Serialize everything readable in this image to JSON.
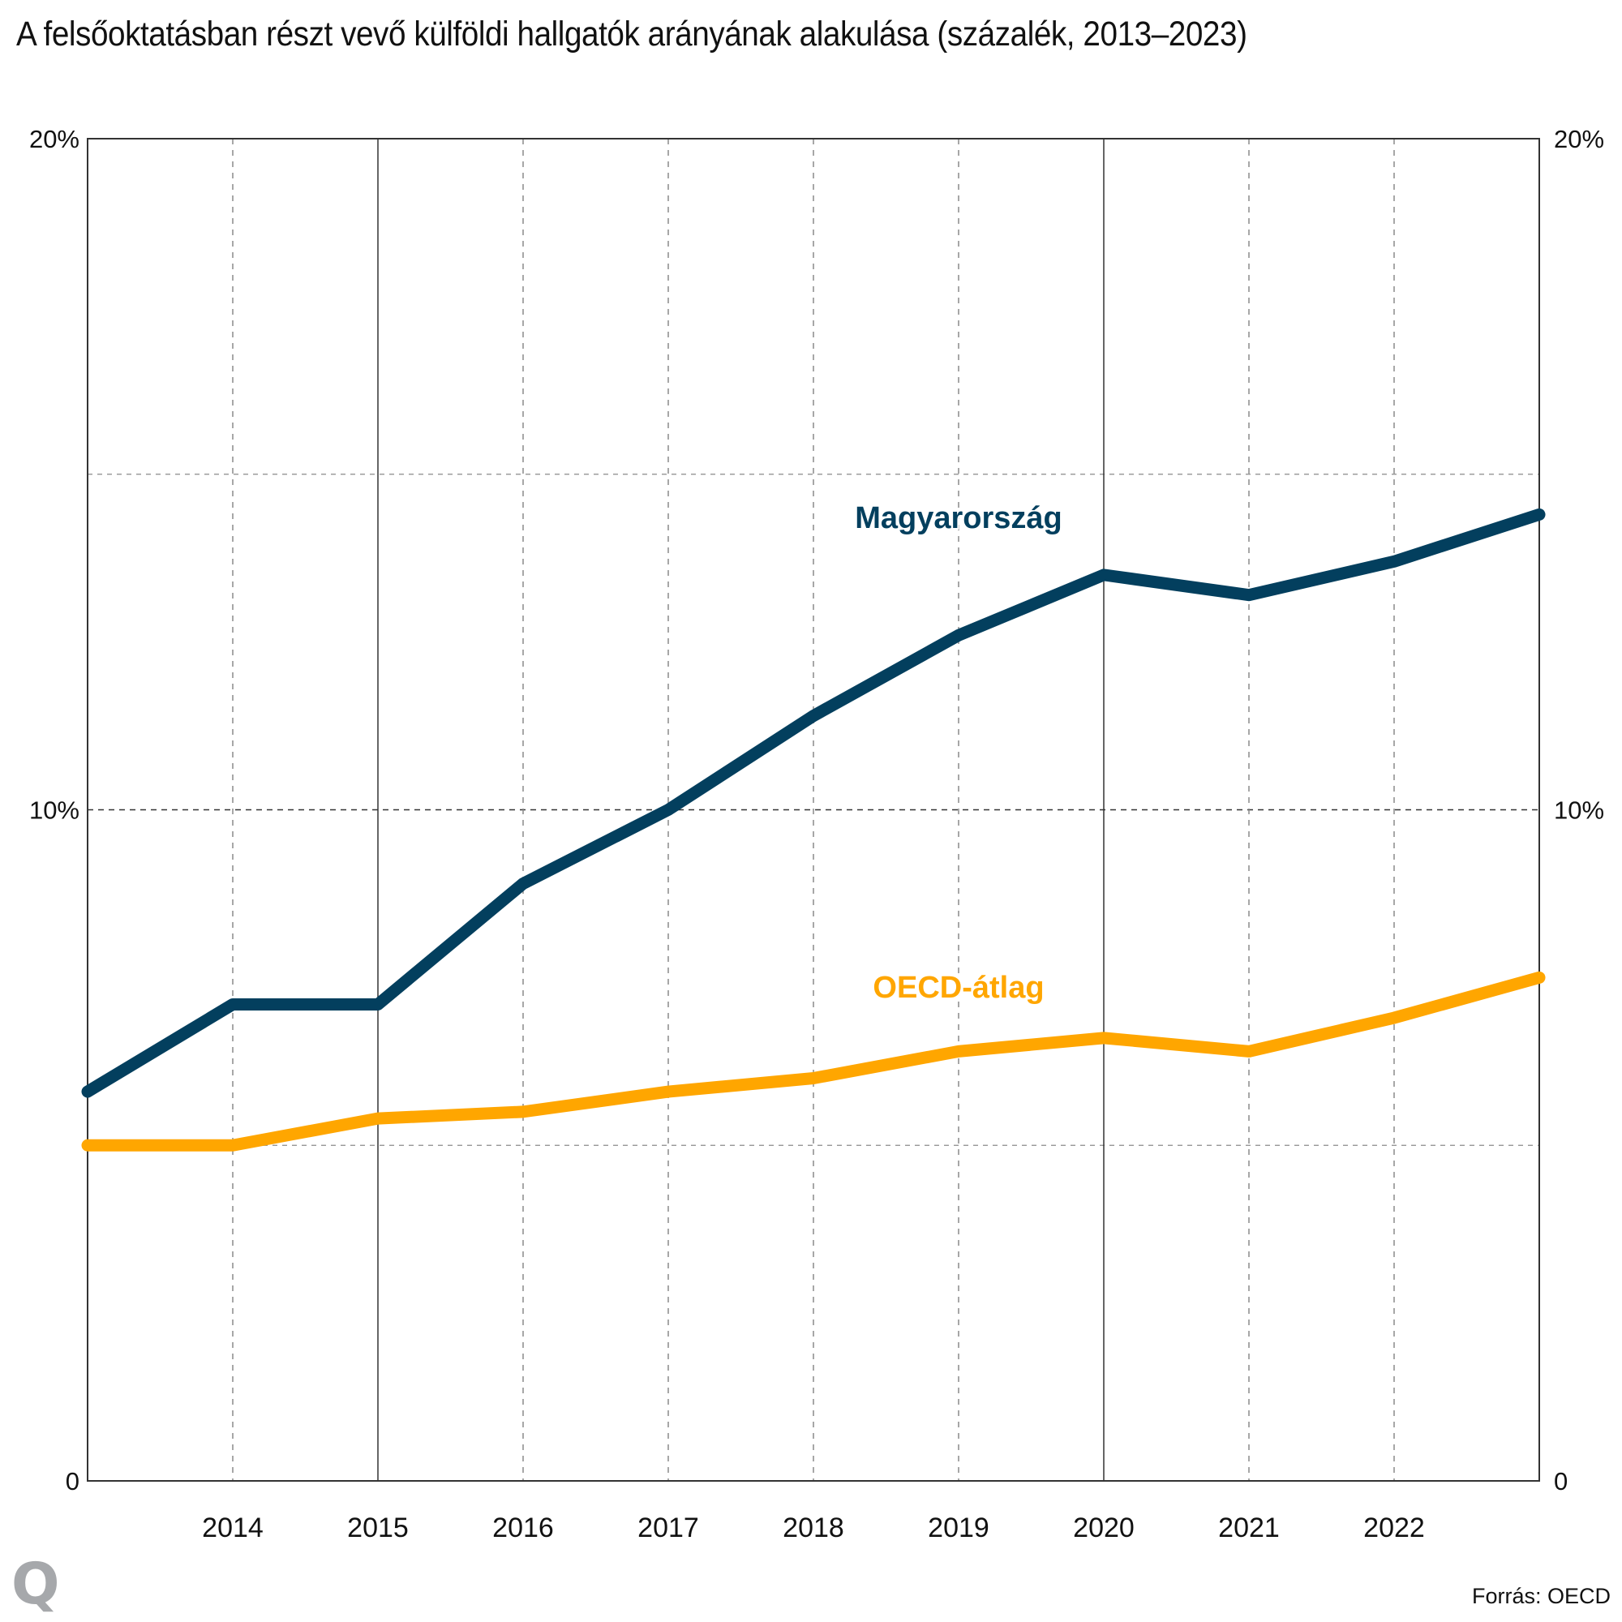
{
  "title": "A felsőoktatásban részt vevő külföldi hallgatók arányának alakulása (százalék, 2013–2023)",
  "source": "Forrás: OECD",
  "brand": "Q",
  "colors": {
    "magyarorszag": "#033f5e",
    "oecd": "#ffa600",
    "axis": "#333333",
    "grid": "#8a8a8a"
  },
  "chart_data": {
    "type": "line",
    "title": "A felsőoktatásban részt vevő külföldi hallgatók arányának alakulása (százalék, 2013–2023)",
    "xlabel": "",
    "ylabel": "",
    "x": [
      2013,
      2014,
      2015,
      2016,
      2017,
      2018,
      2019,
      2020,
      2021,
      2022,
      2023
    ],
    "x_tick_labels": [
      "2014",
      "2015",
      "2016",
      "2017",
      "2018",
      "2019",
      "2020",
      "2021",
      "2022"
    ],
    "x_ticks": [
      2014,
      2015,
      2016,
      2017,
      2018,
      2019,
      2020,
      2021,
      2022
    ],
    "xlim": [
      2013,
      2023
    ],
    "ylim": [
      0,
      20
    ],
    "y_ticks": [
      0,
      10,
      20
    ],
    "y_tick_labels": [
      "0",
      "10%",
      "20%"
    ],
    "y_gridlines": [
      5,
      10,
      15
    ],
    "x_solid_gridlines": [
      2015,
      2020
    ],
    "grid": true,
    "legend": "inline labels",
    "series": [
      {
        "name": "Magyarország",
        "color": "#033f5e",
        "label_anchor_x": 2019,
        "label_anchor_y": 14.2,
        "values": [
          5.8,
          7.1,
          7.1,
          8.9,
          10.0,
          11.4,
          12.6,
          13.5,
          13.2,
          13.7,
          14.4
        ]
      },
      {
        "name": "OECD-átlag",
        "color": "#ffa600",
        "label_anchor_x": 2019,
        "label_anchor_y": 7.2,
        "values": [
          5.0,
          5.0,
          5.4,
          5.5,
          5.8,
          6.0,
          6.4,
          6.6,
          6.4,
          6.9,
          7.5
        ]
      }
    ]
  }
}
